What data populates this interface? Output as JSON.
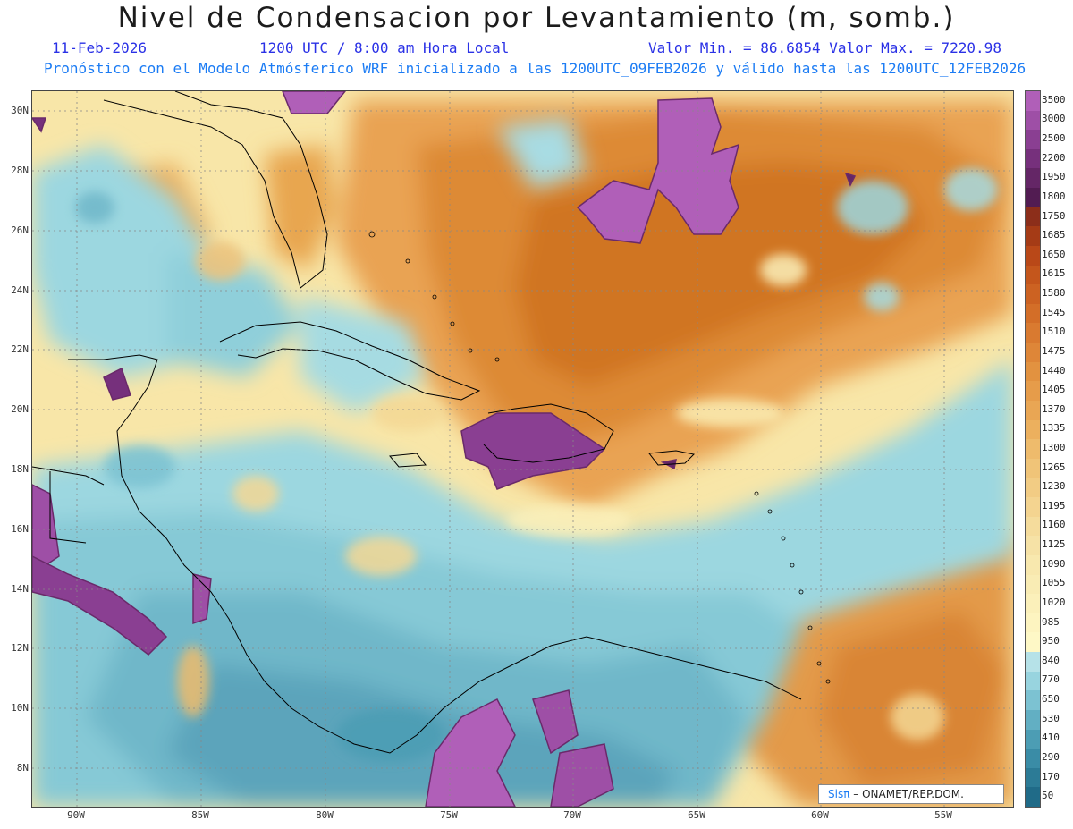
{
  "header": {
    "title": "Nivel de Condensacion por Levantamiento (m, somb.)",
    "date": "11-Feb-2026",
    "time": "1200 UTC / 8:00 am Hora Local",
    "minmax": "Valor Min. = 86.6854  Valor Max. = 7220.98",
    "description": "Pronóstico con el Modelo Atmósferico WRF inicializado a las 1200UTC_09FEB2026 y válido hasta las  1200UTC_12FEB2026"
  },
  "map": {
    "lat_labels": [
      "30N",
      "28N",
      "26N",
      "24N",
      "22N",
      "20N",
      "18N",
      "16N",
      "14N",
      "12N",
      "10N",
      "8N"
    ],
    "lon_labels": [
      "90W",
      "85W",
      "80W",
      "75W",
      "70W",
      "65W",
      "60W",
      "55W"
    ]
  },
  "colorbar": {
    "labels": [
      "3500",
      "3000",
      "2500",
      "2200",
      "1950",
      "1800",
      "1750",
      "1685",
      "1650",
      "1615",
      "1580",
      "1545",
      "1510",
      "1475",
      "1440",
      "1405",
      "1370",
      "1335",
      "1300",
      "1265",
      "1230",
      "1195",
      "1160",
      "1125",
      "1090",
      "1055",
      "1020",
      "985",
      "950",
      "840",
      "770",
      "650",
      "530",
      "410",
      "290",
      "170",
      "50"
    ],
    "colors": [
      "#b05fb8",
      "#9e4fa6",
      "#8a3f92",
      "#76307c",
      "#642666",
      "#521c52",
      "#8c2e1a",
      "#a53b16",
      "#b94818",
      "#c4561c",
      "#cc6222",
      "#d36e28",
      "#d97a30",
      "#de8638",
      "#e29240",
      "#e69c4a",
      "#e9a654",
      "#ecb05e",
      "#eebb6c",
      "#f0c478",
      "#f2cc84",
      "#f4d490",
      "#f5dc9c",
      "#f6e2a6",
      "#f8e8ae",
      "#f9ecb4",
      "#fbf0ba",
      "#fdf4c0",
      "#fef8c6",
      "#b6e2e8",
      "#98d4df",
      "#7cc2d2",
      "#62afc3",
      "#4c9db4",
      "#3a8ca6",
      "#2c7b96",
      "#206b88"
    ]
  },
  "footer": {
    "logo_sis": "Sisπ",
    "logo_rest": "– ONAMET/REP.DOM."
  }
}
